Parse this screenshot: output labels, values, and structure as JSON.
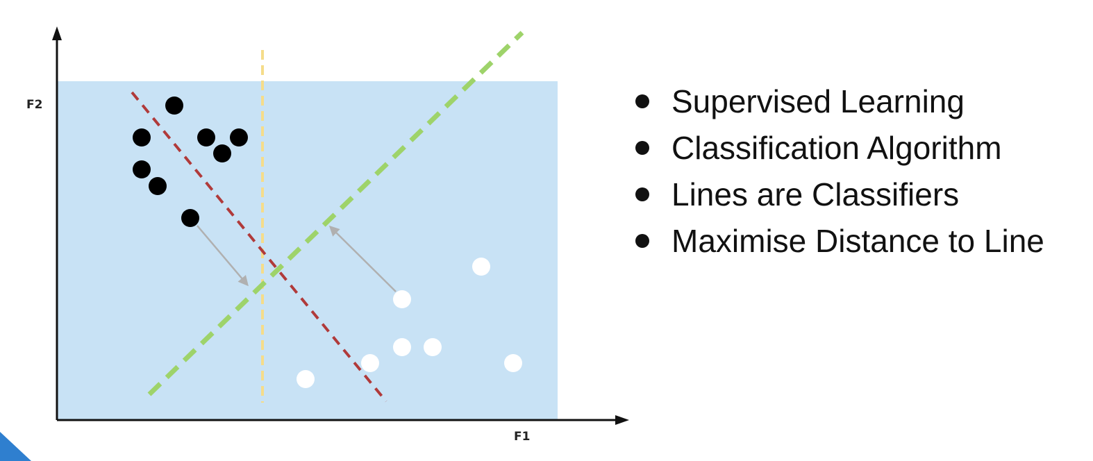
{
  "diagram": {
    "axes": {
      "x_label": "F1",
      "y_label": "F2"
    },
    "colors": {
      "region": "#c8e2f5",
      "class_a": "#000000",
      "class_b": "#ffffff",
      "line_red": "#b03a3a",
      "line_green": "#9ed36a",
      "line_yellow": "#f5dc8a",
      "arrow": "#b0b0b0"
    }
  },
  "bullets": [
    "Supervised Learning",
    "Classification Algorithm",
    "Lines are Classifiers",
    "Maximise Distance to Line"
  ]
}
